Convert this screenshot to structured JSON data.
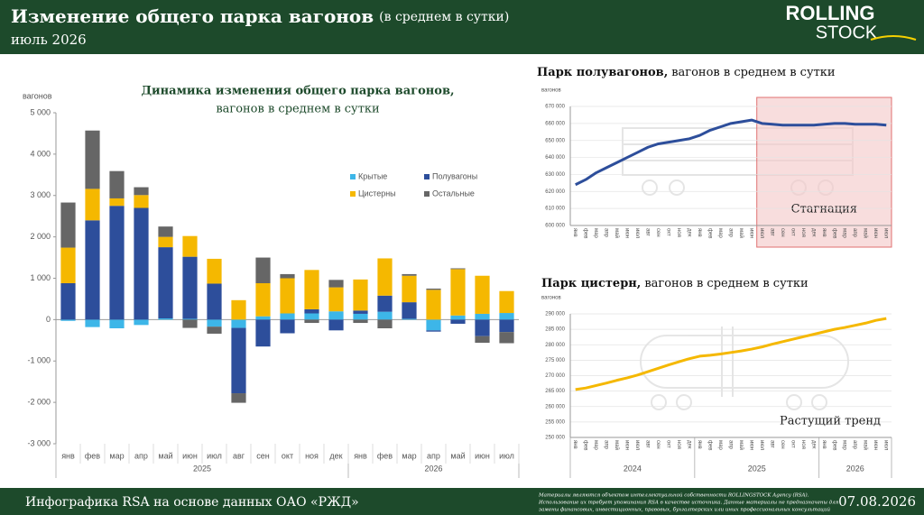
{
  "header": {
    "title": "Изменение общего парка вагонов",
    "subtitle": "(в среднем в сутки)",
    "period": "июль 2026",
    "logo": [
      "ROLLING",
      "STOCK"
    ]
  },
  "footer": {
    "source": "Инфографика RSA на основе данных ОАО «РЖД»",
    "disclaimer": [
      "Материалы являются объектом интеллектуальной собственности ROLLINGSTOCK Agency (RSA).",
      "Использование их требует упоминания RSA в качестве источника. Данные материалы не предназначены для",
      "замены финансовых, инвестиционных, правовых, бухгалтерских или иных профессиональных консультаций"
    ],
    "date": "07.08.2026"
  },
  "chart_data": [
    {
      "type": "bar",
      "stacked": true,
      "title": "Динамика изменения общего парка вагонов,",
      "subtitle": "вагонов в среднем в сутки",
      "y_label": "вагонов",
      "categories": [
        "янв",
        "фев",
        "мар",
        "апр",
        "май",
        "июн",
        "июл",
        "авг",
        "сен",
        "окт",
        "ноя",
        "дек",
        "янв",
        "фев",
        "мар",
        "апр",
        "май",
        "июн",
        "июл"
      ],
      "x_groups": [
        {
          "label": "2025",
          "count": 12
        },
        {
          "label": "2026",
          "count": 7
        }
      ],
      "series": [
        {
          "name": "Крытые",
          "color": "#3db6e8",
          "values": [
            -30,
            -180,
            -210,
            -130,
            30,
            20,
            -170,
            -200,
            80,
            150,
            150,
            200,
            140,
            190,
            20,
            -260,
            100,
            140,
            160
          ]
        },
        {
          "name": "Полувагоны",
          "color": "#2d4e9b",
          "values": [
            880,
            2400,
            2750,
            2700,
            1720,
            1500,
            870,
            -1580,
            -650,
            -330,
            100,
            -260,
            80,
            390,
            400,
            -30,
            -100,
            -400,
            -300
          ]
        },
        {
          "name": "Цистерны",
          "color": "#f5b800",
          "values": [
            860,
            760,
            180,
            310,
            250,
            500,
            600,
            470,
            800,
            850,
            950,
            580,
            750,
            900,
            640,
            720,
            1120,
            920,
            530
          ]
        },
        {
          "name": "Остальные",
          "color": "#666666",
          "values": [
            1090,
            1410,
            660,
            190,
            250,
            -200,
            -170,
            -230,
            620,
            100,
            -80,
            180,
            -80,
            -210,
            40,
            30,
            20,
            -160,
            -270
          ]
        }
      ],
      "ylim": [
        -3000,
        5000
      ],
      "yticks": [
        {
          "value": -3000,
          "label": "-3 000"
        },
        {
          "value": -2000,
          "label": "-2 000"
        },
        {
          "value": -1000,
          "label": "-1 000"
        },
        0,
        {
          "value": 1000,
          "label": "1 000"
        },
        {
          "value": 2000,
          "label": "2 000"
        },
        {
          "value": 3000,
          "label": "3 000"
        },
        {
          "value": 4000,
          "label": "4 000"
        },
        {
          "value": 5000,
          "label": "5 000"
        }
      ],
      "legend": "upper right",
      "grid": false
    },
    {
      "type": "line",
      "title": "Парк полувагонов,",
      "subtitle": "вагонов в среднем в сутки",
      "y_label": "вагонов",
      "color": "#2d4e9b",
      "categories": [
        "янв",
        "фев",
        "мар",
        "апр",
        "май",
        "июн",
        "июл",
        "авг",
        "сен",
        "окт",
        "ноя",
        "дек",
        "янв",
        "фев",
        "мар",
        "апр",
        "май",
        "июн",
        "июл",
        "авг",
        "сен",
        "окт",
        "ноя",
        "дек",
        "янв",
        "фев",
        "мар",
        "апр",
        "май",
        "июн",
        "июл"
      ],
      "values": [
        624000,
        627000,
        631000,
        634000,
        637000,
        640000,
        643000,
        646000,
        648000,
        649000,
        650000,
        651000,
        653000,
        656000,
        658000,
        660000,
        661000,
        662000,
        660000,
        659500,
        659000,
        659000,
        659000,
        659000,
        659500,
        660000,
        660000,
        659500,
        659500,
        659500,
        659000
      ],
      "ylim": [
        600000,
        670000
      ],
      "yticks": [
        {
          "value": 600000,
          "label": "600 000"
        },
        {
          "value": 610000,
          "label": "610 000"
        },
        {
          "value": 620000,
          "label": "620 000"
        },
        {
          "value": 630000,
          "label": "630 000"
        },
        {
          "value": 640000,
          "label": "640 000"
        },
        {
          "value": 650000,
          "label": "650 000"
        },
        {
          "value": 660000,
          "label": "660 000"
        },
        {
          "value": 670000,
          "label": "670 000"
        }
      ],
      "grid": true,
      "highlight": {
        "label": "Стагнация",
        "from": 18,
        "to": 30,
        "color": "#f4c7c7"
      }
    },
    {
      "type": "line",
      "title": "Парк цистерн,",
      "subtitle": "вагонов в среднем в сутки",
      "y_label": "вагонов",
      "color": "#f5b800",
      "categories": [
        "янв",
        "фев",
        "мар",
        "апр",
        "май",
        "июн",
        "июл",
        "авг",
        "сен",
        "окт",
        "ноя",
        "дек",
        "янв",
        "фев",
        "мар",
        "апр",
        "май",
        "июн",
        "июл",
        "авг",
        "сен",
        "окт",
        "ноя",
        "дек",
        "янв",
        "фев",
        "мар",
        "апр",
        "май",
        "июн",
        "июл"
      ],
      "x_groups": [
        {
          "label": "2024",
          "count": 12
        },
        {
          "label": "2025",
          "count": 12
        },
        {
          "label": "2026",
          "count": 7
        }
      ],
      "values": [
        265500,
        266000,
        266800,
        267600,
        268500,
        269300,
        270200,
        271300,
        272400,
        273500,
        274500,
        275500,
        276300,
        276600,
        277000,
        277500,
        278000,
        278600,
        279300,
        280200,
        281000,
        281800,
        282600,
        283400,
        284200,
        285000,
        285600,
        286300,
        287000,
        287900,
        288500
      ],
      "ylim": [
        250000,
        290000
      ],
      "yticks": [
        {
          "value": 250000,
          "label": "250 000"
        },
        {
          "value": 255000,
          "label": "255 000"
        },
        {
          "value": 260000,
          "label": "260 000"
        },
        {
          "value": 265000,
          "label": "265 000"
        },
        {
          "value": 270000,
          "label": "270 000"
        },
        {
          "value": 275000,
          "label": "275 000"
        },
        {
          "value": 280000,
          "label": "280 000"
        },
        {
          "value": 285000,
          "label": "285 000"
        },
        {
          "value": 290000,
          "label": "290 000"
        }
      ],
      "grid": true,
      "annotation": "Растущий тренд"
    }
  ]
}
